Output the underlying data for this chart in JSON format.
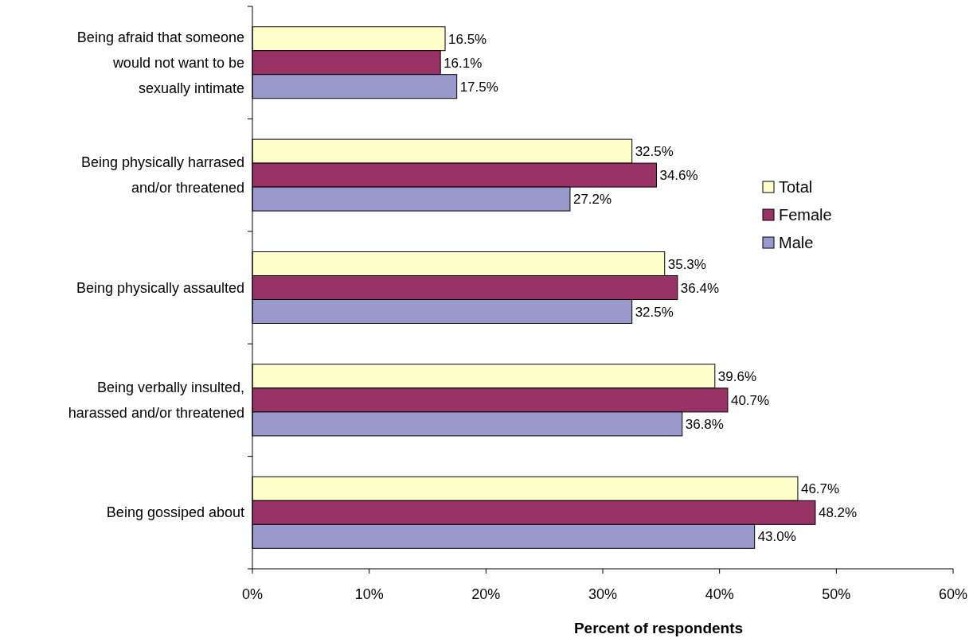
{
  "chart_data": {
    "type": "bar",
    "orientation": "horizontal",
    "categories": [
      "Being afraid that someone would not want to be sexually intimate",
      "Being physically harrased and/or threatened",
      "Being physically assaulted",
      "Being verbally insulted, harassed and/or threatened",
      "Being gossiped about"
    ],
    "series": [
      {
        "name": "Total",
        "color": "#ffffcc",
        "values": [
          16.5,
          32.5,
          35.3,
          39.6,
          46.7
        ],
        "value_labels": [
          "16.5%",
          "32.5%",
          "35.3%",
          "39.6%",
          "46.7%"
        ]
      },
      {
        "name": "Female",
        "color": "#993366",
        "values": [
          16.1,
          34.6,
          36.4,
          40.7,
          48.2
        ],
        "value_labels": [
          "16.1%",
          "34.6%",
          "36.4%",
          "40.7%",
          "48.2%"
        ]
      },
      {
        "name": "Male",
        "color": "#9999cc",
        "values": [
          17.5,
          27.2,
          32.5,
          36.8,
          43.0
        ],
        "value_labels": [
          "17.5%",
          "27.2%",
          "32.5%",
          "36.8%",
          "43.0%"
        ]
      }
    ],
    "xlim": [
      0,
      60
    ],
    "xticks": [
      {
        "value": 0,
        "label": "0%"
      },
      {
        "value": 10,
        "label": "10%"
      },
      {
        "value": 20,
        "label": "20%"
      },
      {
        "value": 30,
        "label": "30%"
      },
      {
        "value": 40,
        "label": "40%"
      },
      {
        "value": 50,
        "label": "50%"
      },
      {
        "value": 60,
        "label": "60%"
      }
    ],
    "xlabel": "Percent of respondents",
    "legend": "top right",
    "grid": false
  }
}
